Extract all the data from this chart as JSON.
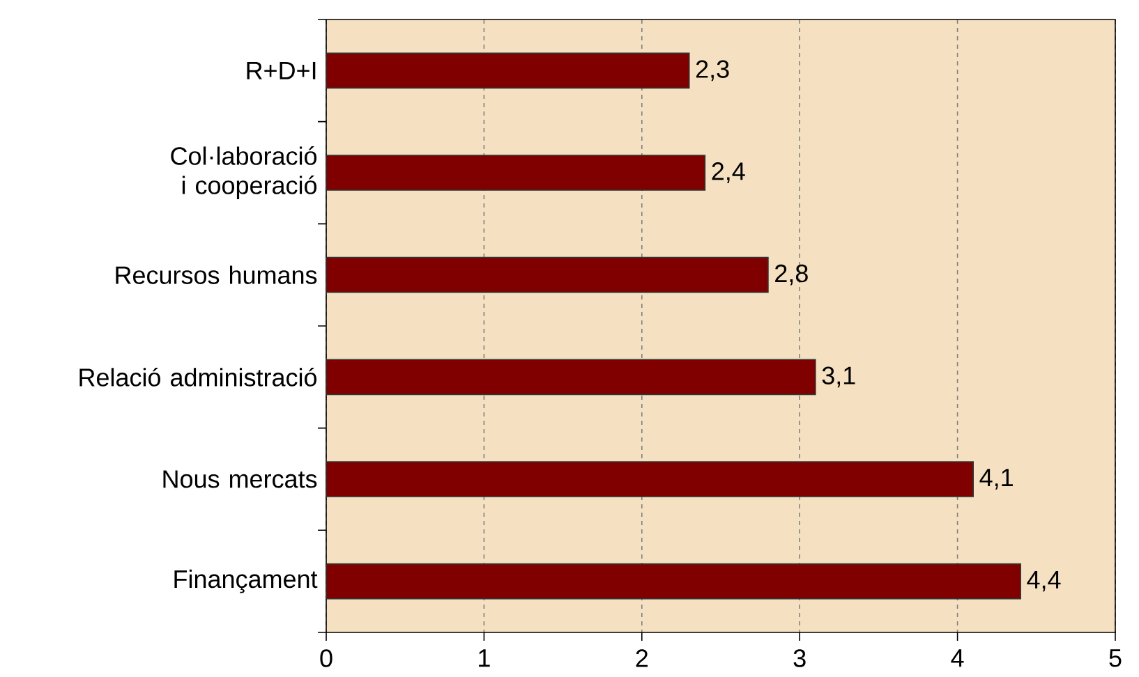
{
  "chart_data": {
    "type": "bar",
    "orientation": "horizontal",
    "categories": [
      "R+D+I",
      "Col·laboració i cooperació",
      "Recursos humans",
      "Relació administració",
      "Nous mercats",
      "Finançament"
    ],
    "values": [
      2.3,
      2.4,
      2.8,
      3.1,
      4.1,
      4.4
    ],
    "value_labels": [
      "2,3",
      "2,4",
      "2,8",
      "3,1",
      "4,1",
      "4,4"
    ],
    "color": "#800000",
    "xlim": [
      0,
      5
    ],
    "xticks": [
      0,
      1,
      2,
      3,
      4,
      5
    ],
    "grid": "x"
  }
}
